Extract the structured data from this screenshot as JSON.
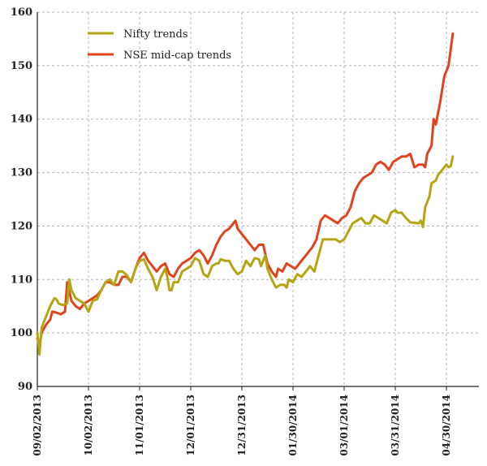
{
  "chart_data": {
    "type": "line",
    "ylim": [
      90,
      160
    ],
    "yticks": [
      90,
      100,
      110,
      120,
      130,
      140,
      150,
      160
    ],
    "xticks": [
      "09/02/2013",
      "10/02/2013",
      "11/01/2013",
      "12/01/2013",
      "12/31/2013",
      "01/30/2014",
      "03/01/2014",
      "03/31/2014",
      "04/30/2014"
    ],
    "grid": "dashed",
    "legend_position": "top-left",
    "series": [
      {
        "name": "Nifty trends",
        "color": "#b4a514",
        "points": [
          [
            0,
            100
          ],
          [
            1,
            96
          ],
          [
            2,
            101
          ],
          [
            4,
            103
          ],
          [
            6,
            105
          ],
          [
            8,
            106.5
          ],
          [
            9,
            106.3
          ],
          [
            10,
            105.5
          ],
          [
            12,
            105.2
          ],
          [
            14,
            105.5
          ],
          [
            15,
            110
          ],
          [
            16,
            108
          ],
          [
            18,
            106.5
          ],
          [
            20,
            106
          ],
          [
            22,
            105.5
          ],
          [
            24,
            104
          ],
          [
            26,
            106
          ],
          [
            28,
            106.3
          ],
          [
            30,
            108
          ],
          [
            32,
            109.5
          ],
          [
            34,
            110
          ],
          [
            36,
            109
          ],
          [
            38,
            111.5
          ],
          [
            40,
            111.5
          ],
          [
            42,
            110.8
          ],
          [
            44,
            109.5
          ],
          [
            46,
            112
          ],
          [
            48,
            113.5
          ],
          [
            50,
            113.8
          ],
          [
            52,
            112
          ],
          [
            54,
            110.5
          ],
          [
            56,
            108
          ],
          [
            58,
            110.5
          ],
          [
            60,
            112
          ],
          [
            61,
            110.5
          ],
          [
            62,
            108
          ],
          [
            63,
            108
          ],
          [
            64,
            109.5
          ],
          [
            66,
            109.5
          ],
          [
            68,
            111.5
          ],
          [
            70,
            112
          ],
          [
            72,
            112.5
          ],
          [
            74,
            114
          ],
          [
            76,
            113.5
          ],
          [
            78,
            111
          ],
          [
            80,
            110.5
          ],
          [
            82,
            112.5
          ],
          [
            84,
            113
          ],
          [
            85,
            113
          ],
          [
            86,
            113.8
          ],
          [
            88,
            113.5
          ],
          [
            90,
            113.5
          ],
          [
            92,
            112
          ],
          [
            94,
            111
          ],
          [
            96,
            111.5
          ],
          [
            98,
            113.5
          ],
          [
            100,
            112.5
          ],
          [
            102,
            114
          ],
          [
            104,
            113.8
          ],
          [
            105,
            112.5
          ],
          [
            107,
            114.5
          ],
          [
            108,
            112
          ],
          [
            110,
            110
          ],
          [
            112,
            108.5
          ],
          [
            114,
            109
          ],
          [
            116,
            109
          ],
          [
            117,
            108.5
          ],
          [
            118,
            110
          ],
          [
            120,
            109.5
          ],
          [
            122,
            111
          ],
          [
            124,
            110.5
          ],
          [
            126,
            111.5
          ],
          [
            128,
            112.5
          ],
          [
            130,
            111.5
          ],
          [
            132,
            114.5
          ],
          [
            134,
            117.5
          ],
          [
            136,
            117.5
          ],
          [
            138,
            117.5
          ],
          [
            140,
            117.5
          ],
          [
            142,
            117
          ],
          [
            144,
            117.5
          ],
          [
            146,
            119
          ],
          [
            148,
            120.5
          ],
          [
            150,
            121
          ],
          [
            152,
            121.5
          ],
          [
            154,
            120.5
          ],
          [
            156,
            120.5
          ],
          [
            158,
            122
          ],
          [
            160,
            121.5
          ],
          [
            162,
            121
          ],
          [
            164,
            120.5
          ],
          [
            166,
            122.5
          ],
          [
            168,
            123
          ],
          [
            169,
            122.5
          ],
          [
            171,
            122.5
          ],
          [
            173,
            121.5
          ],
          [
            175,
            120.7
          ],
          [
            177,
            120.6
          ],
          [
            179,
            120.5
          ],
          [
            180,
            121
          ],
          [
            181,
            119.8
          ],
          [
            182,
            123.5
          ],
          [
            184,
            125.5
          ],
          [
            185,
            128
          ],
          [
            187,
            128.5
          ],
          [
            188,
            129.5
          ],
          [
            190,
            130.5
          ],
          [
            192,
            131.5
          ],
          [
            193,
            131
          ],
          [
            194,
            131.2
          ],
          [
            195,
            133
          ]
        ]
      },
      {
        "name": "NSE mid-cap trends",
        "color": "#e0431e",
        "points": [
          [
            0,
            99
          ],
          [
            1,
            97.5
          ],
          [
            2,
            100
          ],
          [
            4,
            101.5
          ],
          [
            6,
            102.5
          ],
          [
            7,
            104
          ],
          [
            9,
            103.8
          ],
          [
            11,
            103.5
          ],
          [
            13,
            104
          ],
          [
            14,
            109.5
          ],
          [
            16,
            106
          ],
          [
            18,
            105
          ],
          [
            20,
            104.5
          ],
          [
            22,
            105.5
          ],
          [
            24,
            106
          ],
          [
            26,
            106.5
          ],
          [
            28,
            107
          ],
          [
            30,
            108
          ],
          [
            32,
            109.5
          ],
          [
            34,
            109.5
          ],
          [
            36,
            109
          ],
          [
            38,
            109
          ],
          [
            40,
            110.5
          ],
          [
            42,
            110.5
          ],
          [
            44,
            109.5
          ],
          [
            46,
            112
          ],
          [
            48,
            114
          ],
          [
            50,
            115
          ],
          [
            52,
            113.5
          ],
          [
            54,
            112.5
          ],
          [
            56,
            111.5
          ],
          [
            58,
            112.5
          ],
          [
            60,
            113
          ],
          [
            62,
            111
          ],
          [
            64,
            110.5
          ],
          [
            66,
            112
          ],
          [
            68,
            113
          ],
          [
            70,
            113.5
          ],
          [
            72,
            114
          ],
          [
            74,
            115
          ],
          [
            76,
            115.5
          ],
          [
            78,
            114.5
          ],
          [
            80,
            113
          ],
          [
            82,
            114.5
          ],
          [
            84,
            116.5
          ],
          [
            86,
            118
          ],
          [
            88,
            119
          ],
          [
            90,
            119.5
          ],
          [
            92,
            120.5
          ],
          [
            93,
            121
          ],
          [
            94,
            119.5
          ],
          [
            96,
            118.5
          ],
          [
            98,
            117.5
          ],
          [
            100,
            116.5
          ],
          [
            102,
            115.5
          ],
          [
            104,
            116.5
          ],
          [
            106,
            116.5
          ],
          [
            108,
            113
          ],
          [
            110,
            111.5
          ],
          [
            112,
            110.5
          ],
          [
            113,
            112
          ],
          [
            115,
            111.5
          ],
          [
            117,
            113
          ],
          [
            119,
            112.5
          ],
          [
            121,
            112
          ],
          [
            123,
            113
          ],
          [
            125,
            114
          ],
          [
            127,
            115
          ],
          [
            128,
            115.5
          ],
          [
            129,
            116
          ],
          [
            131,
            117.5
          ],
          [
            133,
            121
          ],
          [
            135,
            122
          ],
          [
            137,
            121.5
          ],
          [
            139,
            121
          ],
          [
            141,
            120.5
          ],
          [
            143,
            121.5
          ],
          [
            145,
            122
          ],
          [
            147,
            123.5
          ],
          [
            149,
            126.5
          ],
          [
            151,
            128
          ],
          [
            153,
            129
          ],
          [
            155,
            129.5
          ],
          [
            157,
            130
          ],
          [
            159,
            131.5
          ],
          [
            161,
            132
          ],
          [
            163,
            131.5
          ],
          [
            165,
            130.5
          ],
          [
            167,
            132
          ],
          [
            169,
            132.5
          ],
          [
            171,
            133
          ],
          [
            173,
            133
          ],
          [
            175,
            133.5
          ],
          [
            177,
            131
          ],
          [
            179,
            131.5
          ],
          [
            181,
            131.5
          ],
          [
            182,
            131
          ],
          [
            183,
            133.5
          ],
          [
            185,
            135
          ],
          [
            186,
            140
          ],
          [
            187,
            139
          ],
          [
            189,
            143
          ],
          [
            191,
            148
          ],
          [
            193,
            150
          ],
          [
            195,
            156
          ]
        ]
      }
    ]
  }
}
